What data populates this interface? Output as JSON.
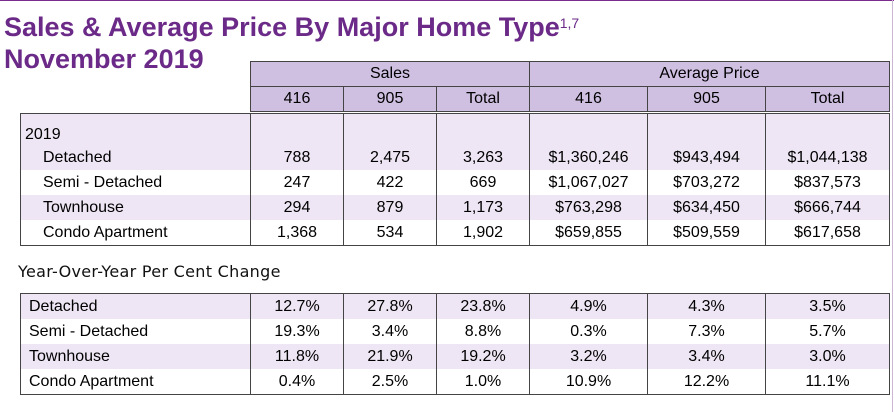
{
  "title": {
    "line1": "Sales & Average Price By Major Home Type",
    "superscript": "1,7",
    "line2": "November 2019"
  },
  "headers": {
    "sales": "Sales",
    "avg_price": "Average Price",
    "col_416": "416",
    "col_905": "905",
    "col_total": "Total"
  },
  "year_label": "2019",
  "rows_2019": [
    {
      "type": "Detached",
      "sales_416": "788",
      "sales_905": "2,475",
      "sales_total": "3,263",
      "price_416": "$1,360,246",
      "price_905": "$943,494",
      "price_total": "$1,044,138"
    },
    {
      "type": "Semi - Detached",
      "sales_416": "247",
      "sales_905": "422",
      "sales_total": "669",
      "price_416": "$1,067,027",
      "price_905": "$703,272",
      "price_total": "$837,573"
    },
    {
      "type": "Townhouse",
      "sales_416": "294",
      "sales_905": "879",
      "sales_total": "1,173",
      "price_416": "$763,298",
      "price_905": "$634,450",
      "price_total": "$666,744"
    },
    {
      "type": "Condo Apartment",
      "sales_416": "1,368",
      "sales_905": "534",
      "sales_total": "1,902",
      "price_416": "$659,855",
      "price_905": "$509,559",
      "price_total": "$617,658"
    }
  ],
  "yoy_label": "Year-Over-Year Per Cent Change",
  "rows_yoy": [
    {
      "type": "Detached",
      "sales_416": "12.7%",
      "sales_905": "27.8%",
      "sales_total": "23.8%",
      "price_416": "4.9%",
      "price_905": "4.3%",
      "price_total": "3.5%"
    },
    {
      "type": "Semi - Detached",
      "sales_416": "19.3%",
      "sales_905": "3.4%",
      "sales_total": "8.8%",
      "price_416": "0.3%",
      "price_905": "7.3%",
      "price_total": "5.7%"
    },
    {
      "type": "Townhouse",
      "sales_416": "11.8%",
      "sales_905": "21.9%",
      "sales_total": "19.2%",
      "price_416": "3.2%",
      "price_905": "3.4%",
      "price_total": "3.0%"
    },
    {
      "type": "Condo Apartment",
      "sales_416": "0.4%",
      "sales_905": "2.5%",
      "sales_total": "1.0%",
      "price_416": "10.9%",
      "price_905": "12.2%",
      "price_total": "11.1%"
    }
  ],
  "colors": {
    "title": "#6b2a88",
    "header_bg": "#cfc0e2",
    "row_light": "#eee6f4"
  }
}
